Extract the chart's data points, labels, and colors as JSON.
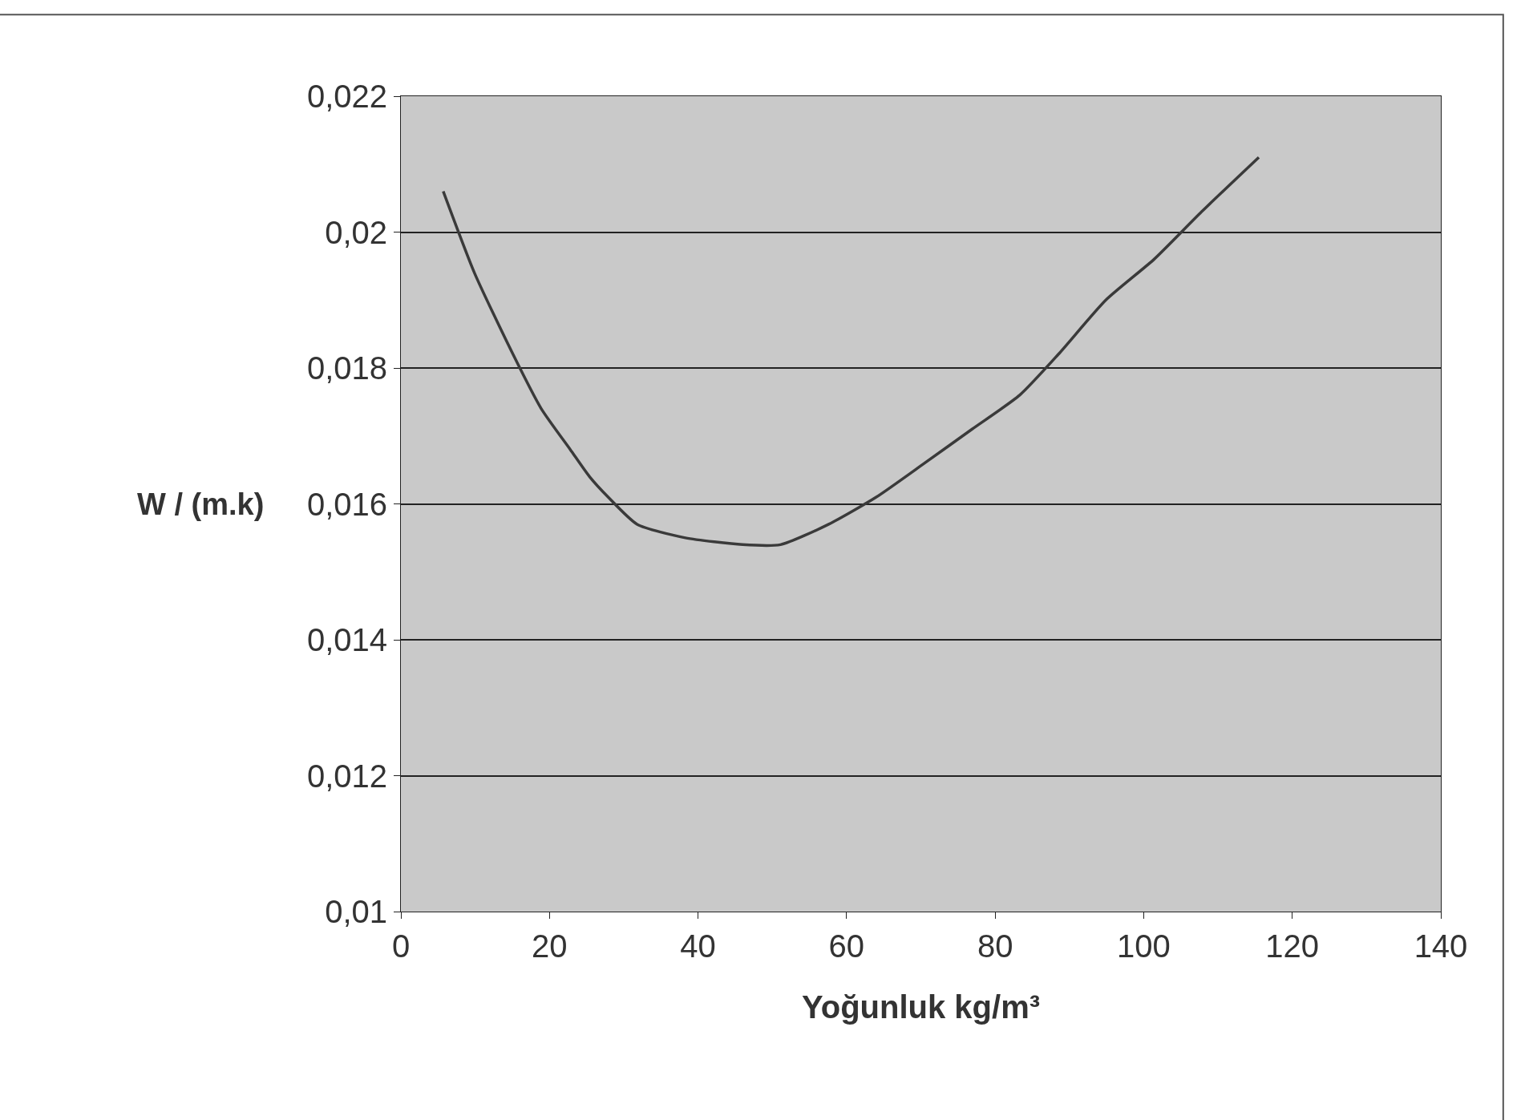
{
  "chart_data": {
    "type": "line",
    "xlabel": "Yoğunluk kg/m³",
    "ylabel": "W / (m.k)",
    "x": [
      5.7,
      9.9,
      15.1,
      18.9,
      22.8,
      25.4,
      27.9,
      31.8,
      38.3,
      46.0,
      51.1,
      57.6,
      64.0,
      70.5,
      76.9,
      83.3,
      88.5,
      94.9,
      101.4,
      107.8,
      115.5
    ],
    "series": [
      {
        "color": "#3a3a3a",
        "values": [
          0.0206,
          0.0194,
          0.0182,
          0.0174,
          0.0168,
          0.0164,
          0.0161,
          0.0157,
          0.0155,
          0.0154,
          0.0154,
          0.0157,
          0.0161,
          0.0166,
          0.0171,
          0.0176,
          0.0182,
          0.019,
          0.0196,
          0.0203,
          0.0211
        ]
      }
    ],
    "xlim": [
      0,
      140
    ],
    "xticks": [
      0,
      20,
      40,
      60,
      80,
      100,
      120,
      140
    ],
    "ylim": [
      0.01,
      0.022
    ],
    "yticks": [
      {
        "value": 0.01,
        "label": "0,01"
      },
      {
        "value": 0.012,
        "label": "0,012"
      },
      {
        "value": 0.014,
        "label": "0,014"
      },
      {
        "value": 0.016,
        "label": "0,016"
      },
      {
        "value": 0.018,
        "label": "0,018"
      },
      {
        "value": 0.02,
        "label": "0,02"
      },
      {
        "value": 0.022,
        "label": "0,022"
      }
    ],
    "grid": "y",
    "marker": "none",
    "line_style": "solid"
  }
}
